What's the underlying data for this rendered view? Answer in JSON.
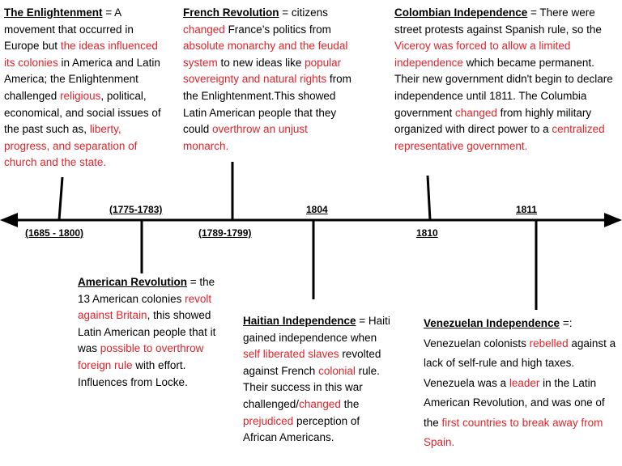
{
  "colors": {
    "text": "#000000",
    "highlight": "#e0232a",
    "line": "#000000"
  },
  "dates": {
    "enlightenment": "(1685 - 1800)",
    "american": "(1775-1783)",
    "french": "(1789-1799)",
    "haiti": "1804",
    "colombia": "1810",
    "venezuela": "1811"
  },
  "events": {
    "enlightenment": {
      "title": "The Enlightenment",
      "t1": " = A movement that occurred in Europe but ",
      "r1": "the ideas influenced its colonies",
      "t2": " in America and Latin America; the Enlightenment challenged ",
      "r2": "religious",
      "t3": ", political, economical, and social issues of the past such as, ",
      "r3": "liberty, progress, and separation of church and the state."
    },
    "french": {
      "title": "French Revolution",
      "t1": " = citizens ",
      "r1": "changed",
      "t2": " France’s politics from ",
      "r2": "absolute monarchy and the feudal system",
      "t3": " to new ideas like ",
      "r3": "popular sovereignty and natural rights",
      "t4": " from the Enlightenment.This showed Latin American people that they could ",
      "r4": "overthrow an unjust monarch."
    },
    "colombia": {
      "title": "Colombian Independence",
      "t1": " = There were street protests against Spanish rule, so the ",
      "r1": "Viceroy was forced to allow a limited independence",
      "t2": " which became permanent. Their new government didn't begin to declare independence until 1811. The Columbia government ",
      "r2": "changed",
      "t3": " from highly military organized with direct power to a ",
      "r3": "centralized representative government."
    },
    "american": {
      "title": "American Revolution",
      "t1": " = the 13 American colonies ",
      "r1": "revolt against Britain",
      "t2": ", this showed Latin American people that it was ",
      "r2": "possible to overthrow foreign rule",
      "t3": " with effort. Influences from Locke."
    },
    "haiti": {
      "title": "Haitian Independence",
      "t1": " = Haiti gained independence when ",
      "r1": "self liberated slaves",
      "t2": " revolted against French ",
      "r2": "colonial",
      "t3": " rule. Their success in this war challenged/",
      "r3": "changed",
      "t4": " the ",
      "r4": "prejudiced",
      "t5": " perception of African Americans."
    },
    "venezuela": {
      "title": "Venezuelan Independence",
      "t1": " =: Venezuelan colonists ",
      "r1": "rebelled",
      "t2": " against a lack of self-rule and high taxes. Venezuela was a ",
      "r2": "leader",
      "t3": " in the Latin American Revolution, and was one of the ",
      "r3": "first countries to break away from Spain."
    }
  }
}
